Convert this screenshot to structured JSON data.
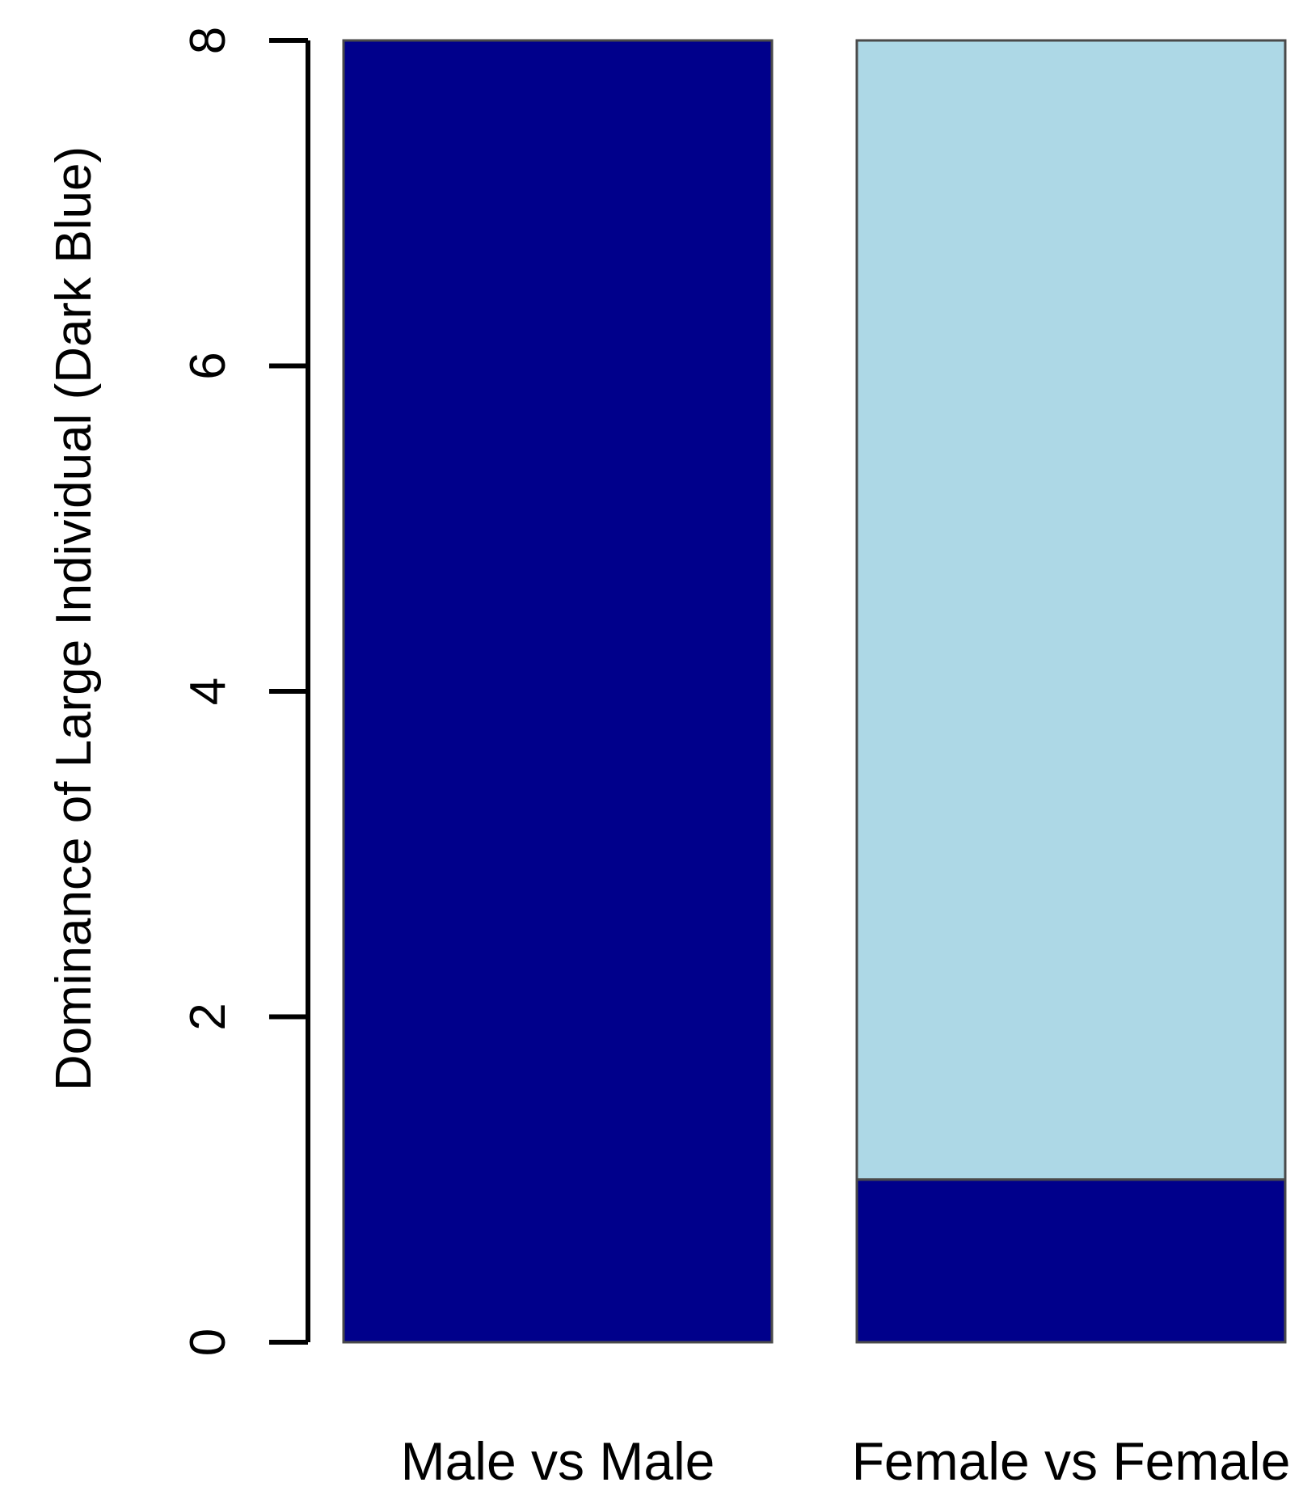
{
  "chart_data": {
    "type": "bar",
    "stacked": true,
    "categories": [
      "Male vs Male",
      "Female vs Female"
    ],
    "series": [
      {
        "values": [
          8,
          1
        ],
        "color": "#00008B"
      },
      {
        "values": [
          0,
          7
        ],
        "color": "#ADD8E6"
      }
    ],
    "title": "",
    "xlabel": "",
    "ylabel": "Dominance of Large Individual (Dark Blue)",
    "ylim": [
      0,
      8
    ],
    "yticks": [
      "0",
      "2",
      "4",
      "6",
      "8"
    ],
    "grid": false,
    "legend": "none"
  }
}
